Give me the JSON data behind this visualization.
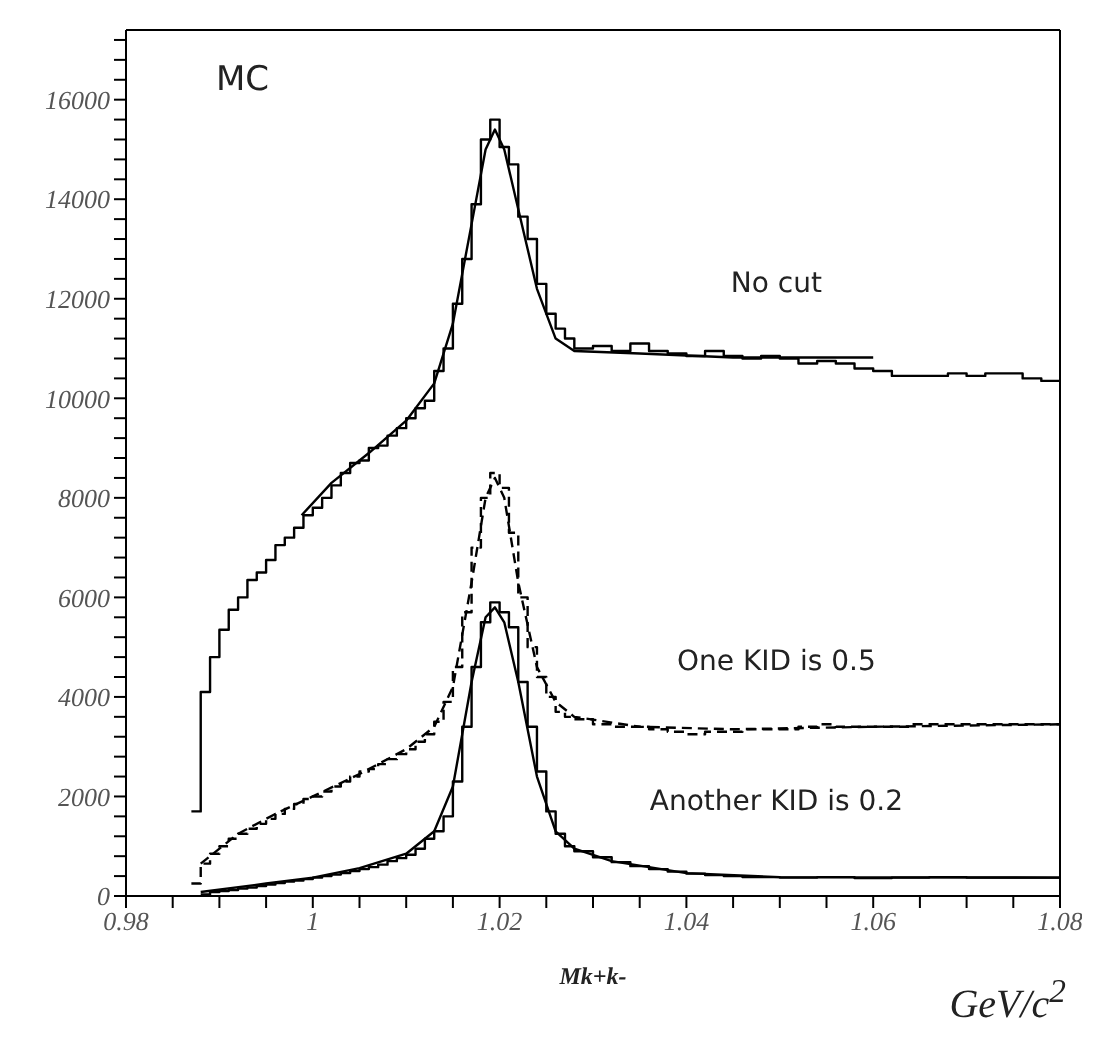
{
  "chart_data": {
    "type": "step",
    "xlabel": "Mk+k-",
    "annotations": [
      "MC",
      "GeV/c$^{2}$"
    ],
    "xlim": [
      0.98,
      1.08
    ],
    "xticks": [
      0.98,
      {
        "value": 0.985,
        "label": null
      },
      {
        "value": 0.99,
        "label": null
      },
      {
        "value": 0.995,
        "label": null
      },
      1,
      {
        "value": 1.005,
        "label": null
      },
      {
        "value": 1.01,
        "label": null
      },
      {
        "value": 1.015,
        "label": null
      },
      1.02,
      {
        "value": 1.025,
        "label": null
      },
      {
        "value": 1.03,
        "label": null
      },
      {
        "value": 1.035,
        "label": null
      },
      1.04,
      {
        "value": 1.045,
        "label": null
      },
      {
        "value": 1.05,
        "label": null
      },
      {
        "value": 1.055,
        "label": null
      },
      1.06,
      {
        "value": 1.065,
        "label": null
      },
      {
        "value": 1.07,
        "label": null
      },
      {
        "value": 1.075,
        "label": null
      },
      1.08
    ],
    "ylim": [
      0,
      17400
    ],
    "yticks": [
      0,
      {
        "value": 400,
        "label": null
      },
      {
        "value": 800,
        "label": null
      },
      {
        "value": 1200,
        "label": null
      },
      {
        "value": 1600,
        "label": null
      },
      2000,
      {
        "value": 2400,
        "label": null
      },
      {
        "value": 2800,
        "label": null
      },
      {
        "value": 3200,
        "label": null
      },
      {
        "value": 3600,
        "label": null
      },
      4000,
      {
        "value": 4400,
        "label": null
      },
      {
        "value": 4800,
        "label": null
      },
      {
        "value": 5200,
        "label": null
      },
      {
        "value": 5600,
        "label": null
      },
      6000,
      {
        "value": 6400,
        "label": null
      },
      {
        "value": 6800,
        "label": null
      },
      {
        "value": 7200,
        "label": null
      },
      {
        "value": 7600,
        "label": null
      },
      8000,
      {
        "value": 8400,
        "label": null
      },
      {
        "value": 8800,
        "label": null
      },
      {
        "value": 9200,
        "label": null
      },
      {
        "value": 9600,
        "label": null
      },
      10000,
      {
        "value": 10400,
        "label": null
      },
      {
        "value": 10800,
        "label": null
      },
      {
        "value": 11200,
        "label": null
      },
      {
        "value": 11600,
        "label": null
      },
      12000,
      {
        "value": 12400,
        "label": null
      },
      {
        "value": 12800,
        "label": null
      },
      {
        "value": 13200,
        "label": null
      },
      {
        "value": 13600,
        "label": null
      },
      14000,
      {
        "value": 14400,
        "label": null
      },
      {
        "value": 14800,
        "label": null
      },
      {
        "value": 15200,
        "label": null
      },
      {
        "value": 15600,
        "label": null
      },
      16000,
      {
        "value": 16400,
        "label": null
      },
      {
        "value": 16800,
        "label": null
      },
      {
        "value": 17200,
        "label": null
      }
    ],
    "grid": false,
    "legend": false,
    "marker": "none",
    "series": [
      {
        "name": "No cut",
        "color": "#000000",
        "line_style": "solid",
        "x": [
          0.987,
          0.988,
          0.989,
          0.99,
          0.991,
          0.992,
          0.993,
          0.994,
          0.995,
          0.996,
          0.997,
          0.998,
          0.999,
          1.0,
          1.001,
          1.002,
          1.003,
          1.004,
          1.005,
          1.006,
          1.007,
          1.008,
          1.009,
          1.01,
          1.011,
          1.012,
          1.013,
          1.014,
          1.015,
          1.016,
          1.017,
          1.018,
          1.019,
          1.02,
          1.021,
          1.022,
          1.023,
          1.024,
          1.025,
          1.026,
          1.027,
          1.028,
          1.03,
          1.032,
          1.034,
          1.036,
          1.038,
          1.04,
          1.042,
          1.044,
          1.046,
          1.048,
          1.05,
          1.052,
          1.054,
          1.056,
          1.058,
          1.06,
          1.062,
          1.064,
          1.066,
          1.068,
          1.07,
          1.072,
          1.074,
          1.076,
          1.078,
          1.08
        ],
        "values": [
          1700,
          4100,
          4800,
          5350,
          5750,
          6000,
          6350,
          6500,
          6750,
          7050,
          7200,
          7400,
          7650,
          7800,
          8000,
          8250,
          8500,
          8700,
          8750,
          9000,
          9050,
          9250,
          9400,
          9600,
          9800,
          9950,
          10550,
          11000,
          11900,
          12800,
          13900,
          15200,
          15600,
          15050,
          14700,
          13650,
          13200,
          12300,
          11700,
          11400,
          11200,
          11000,
          11050,
          10950,
          11100,
          10950,
          10900,
          10850,
          10950,
          10850,
          10800,
          10850,
          10800,
          10700,
          10750,
          10700,
          10600,
          10550,
          10450,
          10450,
          10450,
          10500,
          10450,
          10500,
          10500,
          10400,
          10350,
          10350
        ]
      },
      {
        "type": "line",
        "color": "#000000",
        "line_style": "solid",
        "x": [
          0.9988,
          1.002,
          1.006,
          1.01,
          1.013,
          1.015,
          1.017,
          1.0185,
          1.0195,
          1.0205,
          1.022,
          1.024,
          1.026,
          1.028,
          1.035,
          1.045,
          1.06
        ],
        "values": [
          7650,
          8300,
          8900,
          9550,
          10300,
          11500,
          13500,
          15000,
          15400,
          15000,
          13800,
          12200,
          11200,
          10950,
          10900,
          10820,
          10820
        ]
      },
      {
        "name": "One KID is 0.5",
        "color": "#000000",
        "line_style": "dashed",
        "x": [
          0.987,
          0.988,
          0.989,
          0.99,
          0.991,
          0.992,
          0.993,
          0.994,
          0.995,
          0.996,
          0.997,
          0.998,
          0.999,
          1.0,
          1.001,
          1.002,
          1.003,
          1.004,
          1.005,
          1.006,
          1.007,
          1.008,
          1.009,
          1.01,
          1.011,
          1.012,
          1.013,
          1.014,
          1.015,
          1.016,
          1.017,
          1.018,
          1.019,
          1.02,
          1.021,
          1.022,
          1.023,
          1.024,
          1.025,
          1.026,
          1.027,
          1.028,
          1.03,
          1.032,
          1.034,
          1.036,
          1.038,
          1.04,
          1.042,
          1.044,
          1.046,
          1.048,
          1.05,
          1.052,
          1.054,
          1.056,
          1.058,
          1.06,
          1.062,
          1.064,
          1.066,
          1.068,
          1.07,
          1.072,
          1.074,
          1.076,
          1.078,
          1.08
        ],
        "values": [
          250,
          650,
          850,
          1000,
          1150,
          1250,
          1350,
          1450,
          1550,
          1650,
          1750,
          1850,
          1950,
          2000,
          2100,
          2200,
          2300,
          2400,
          2500,
          2550,
          2650,
          2750,
          2850,
          2950,
          3100,
          3250,
          3500,
          3900,
          4600,
          5700,
          7000,
          8000,
          8500,
          8200,
          7300,
          6000,
          5000,
          4400,
          4000,
          3700,
          3600,
          3550,
          3450,
          3400,
          3400,
          3350,
          3300,
          3250,
          3300,
          3300,
          3350,
          3350,
          3350,
          3400,
          3450,
          3400,
          3400,
          3400,
          3400,
          3450,
          3450,
          3450,
          3450,
          3450,
          3450,
          3450,
          3450,
          3450
        ]
      },
      {
        "type": "line",
        "color": "#000000",
        "line_style": "dashed",
        "x": [
          0.988,
          0.992,
          0.996,
          1.0,
          1.005,
          1.01,
          1.013,
          1.015,
          1.017,
          1.0185,
          1.0195,
          1.0205,
          1.022,
          1.024,
          1.026,
          1.028,
          1.035,
          1.045,
          1.06,
          1.08
        ],
        "values": [
          650,
          1250,
          1650,
          2000,
          2450,
          2950,
          3400,
          4200,
          6300,
          8000,
          8400,
          8000,
          6300,
          4600,
          3900,
          3600,
          3400,
          3350,
          3400,
          3450
        ]
      },
      {
        "name": "Another KID is 0.2",
        "color": "#000000",
        "line_style": "solid",
        "x": [
          0.988,
          0.989,
          0.99,
          0.991,
          0.992,
          0.993,
          0.994,
          0.995,
          0.996,
          0.997,
          0.998,
          0.999,
          1.0,
          1.001,
          1.002,
          1.003,
          1.004,
          1.005,
          1.006,
          1.007,
          1.008,
          1.009,
          1.01,
          1.011,
          1.012,
          1.013,
          1.014,
          1.015,
          1.016,
          1.017,
          1.018,
          1.019,
          1.02,
          1.021,
          1.022,
          1.023,
          1.024,
          1.025,
          1.026,
          1.027,
          1.028,
          1.03,
          1.032,
          1.034,
          1.036,
          1.038,
          1.04,
          1.042,
          1.044,
          1.046,
          1.048,
          1.05,
          1.054,
          1.058,
          1.062,
          1.066,
          1.07,
          1.074,
          1.08
        ],
        "values": [
          30,
          80,
          100,
          120,
          150,
          170,
          200,
          230,
          260,
          290,
          310,
          340,
          370,
          400,
          430,
          460,
          500,
          540,
          580,
          630,
          700,
          760,
          830,
          950,
          1150,
          1300,
          1600,
          2300,
          3400,
          4600,
          5500,
          5900,
          5700,
          5400,
          4300,
          3400,
          2500,
          1700,
          1250,
          1000,
          900,
          780,
          680,
          600,
          540,
          490,
          450,
          420,
          400,
          380,
          380,
          370,
          380,
          360,
          370,
          380,
          370,
          370,
          370
        ]
      },
      {
        "type": "line",
        "color": "#000000",
        "line_style": "solid",
        "x": [
          0.988,
          0.995,
          1.0,
          1.005,
          1.01,
          1.013,
          1.015,
          1.017,
          1.0185,
          1.0195,
          1.0205,
          1.022,
          1.024,
          1.026,
          1.028,
          1.032,
          1.04,
          1.05,
          1.08
        ],
        "values": [
          80,
          250,
          370,
          560,
          850,
          1300,
          2200,
          4300,
          5600,
          5800,
          5500,
          4300,
          2400,
          1300,
          950,
          700,
          460,
          380,
          370
        ]
      }
    ]
  }
}
